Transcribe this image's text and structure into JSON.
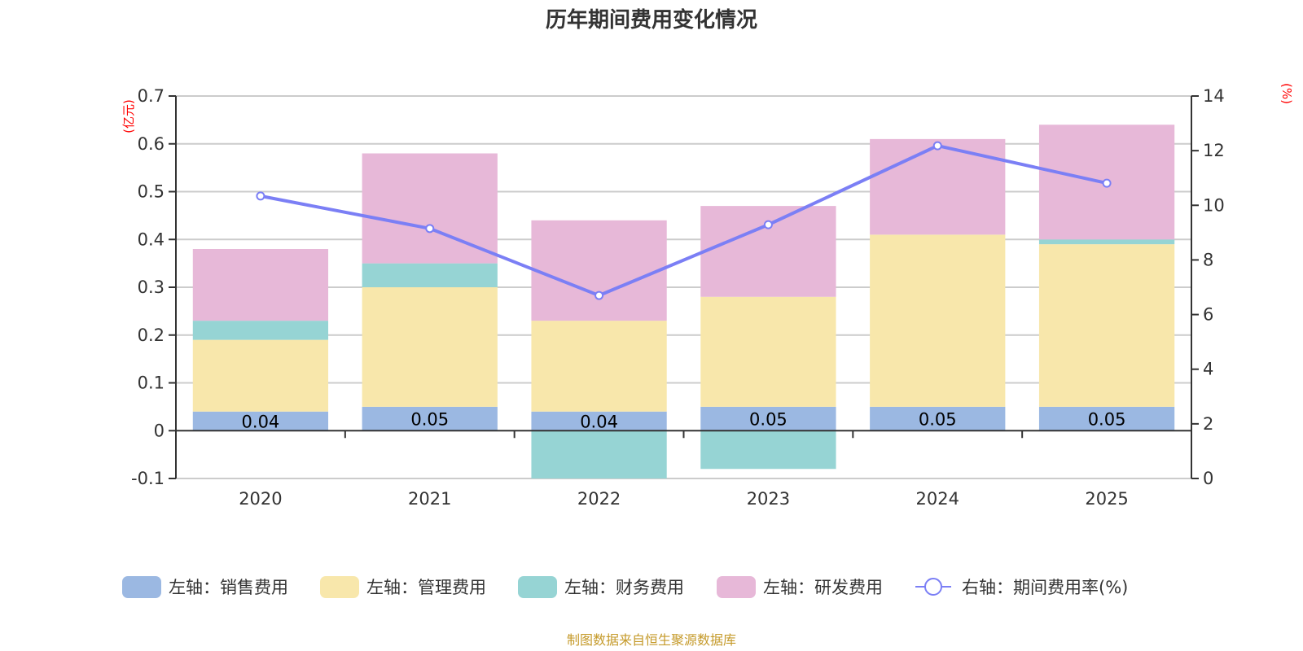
{
  "chart_data": {
    "type": "bar",
    "title": "历年期间费用变化情况",
    "categories": [
      "2020",
      "2021",
      "2022",
      "2023",
      "2024",
      "2025"
    ],
    "stacked": true,
    "left_axis": {
      "unit_label": "(亿元)",
      "range": [
        -0.1,
        0.7
      ],
      "ticks": [
        "-0.1",
        "0",
        "0.1",
        "0.2",
        "0.3",
        "0.4",
        "0.5",
        "0.6",
        "0.7"
      ],
      "tick_values": [
        -0.1,
        0,
        0.1,
        0.2,
        0.3,
        0.4,
        0.5,
        0.6,
        0.7
      ]
    },
    "right_axis": {
      "unit_label": "(%)",
      "range": [
        0,
        14
      ],
      "ticks": [
        "0",
        "2",
        "4",
        "6",
        "8",
        "10",
        "12",
        "14"
      ],
      "tick_values": [
        0,
        2,
        4,
        6,
        8,
        10,
        12,
        14
      ]
    },
    "grid": true,
    "series": [
      {
        "name": "左轴：销售费用",
        "type": "bar",
        "axis": "left",
        "color": "#9bb8e2",
        "values": [
          0.04,
          0.05,
          0.04,
          0.05,
          0.05,
          0.05
        ],
        "labels": [
          "0.04",
          "0.05",
          "0.04",
          "0.05",
          "0.05",
          "0.05"
        ]
      },
      {
        "name": "左轴：管理费用",
        "type": "bar",
        "axis": "left",
        "color": "#f8e7ab",
        "values": [
          0.15,
          0.25,
          0.19,
          0.23,
          0.36,
          0.34
        ]
      },
      {
        "name": "左轴：财务费用",
        "type": "bar",
        "axis": "left",
        "color": "#96d4d4",
        "values": [
          0.04,
          0.05,
          -0.1,
          -0.08,
          0.0,
          0.01
        ]
      },
      {
        "name": "左轴：研发费用",
        "type": "bar",
        "axis": "left",
        "color": "#e7b8d8",
        "values": [
          0.15,
          0.23,
          0.21,
          0.19,
          0.2,
          0.24
        ]
      },
      {
        "name": "右轴：期间费用率(%)",
        "type": "line",
        "axis": "right",
        "color": "#7b7ff5",
        "values": [
          10.34,
          9.15,
          6.7,
          9.29,
          12.18,
          10.81
        ]
      }
    ],
    "legend_position": "bottom",
    "source_note": "制图数据来自恒生聚源数据库"
  }
}
